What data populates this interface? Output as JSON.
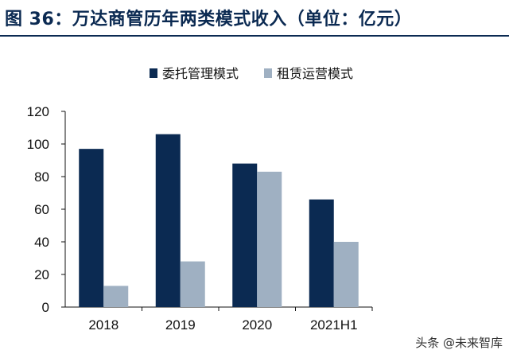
{
  "figure": {
    "title": "图 36：万达商管历年两类模式收入（单位：亿元）"
  },
  "watermark": "头条 @未来智库",
  "chart_data": {
    "type": "bar",
    "title": "图 36：万达商管历年两类模式收入（单位：亿元）",
    "xlabel": "",
    "ylabel": "",
    "categories": [
      "2018",
      "2019",
      "2020",
      "2021H1"
    ],
    "ylim": [
      0,
      120
    ],
    "yticks": [
      0,
      20,
      40,
      60,
      80,
      100,
      120
    ],
    "grid": false,
    "legend_position": "top",
    "series": [
      {
        "name": "委托管理模式",
        "color": "#0b2a52",
        "values": [
          97,
          106,
          88,
          66
        ]
      },
      {
        "name": "租赁运营模式",
        "color": "#9fb0c2",
        "values": [
          13,
          28,
          83,
          40
        ]
      }
    ]
  }
}
